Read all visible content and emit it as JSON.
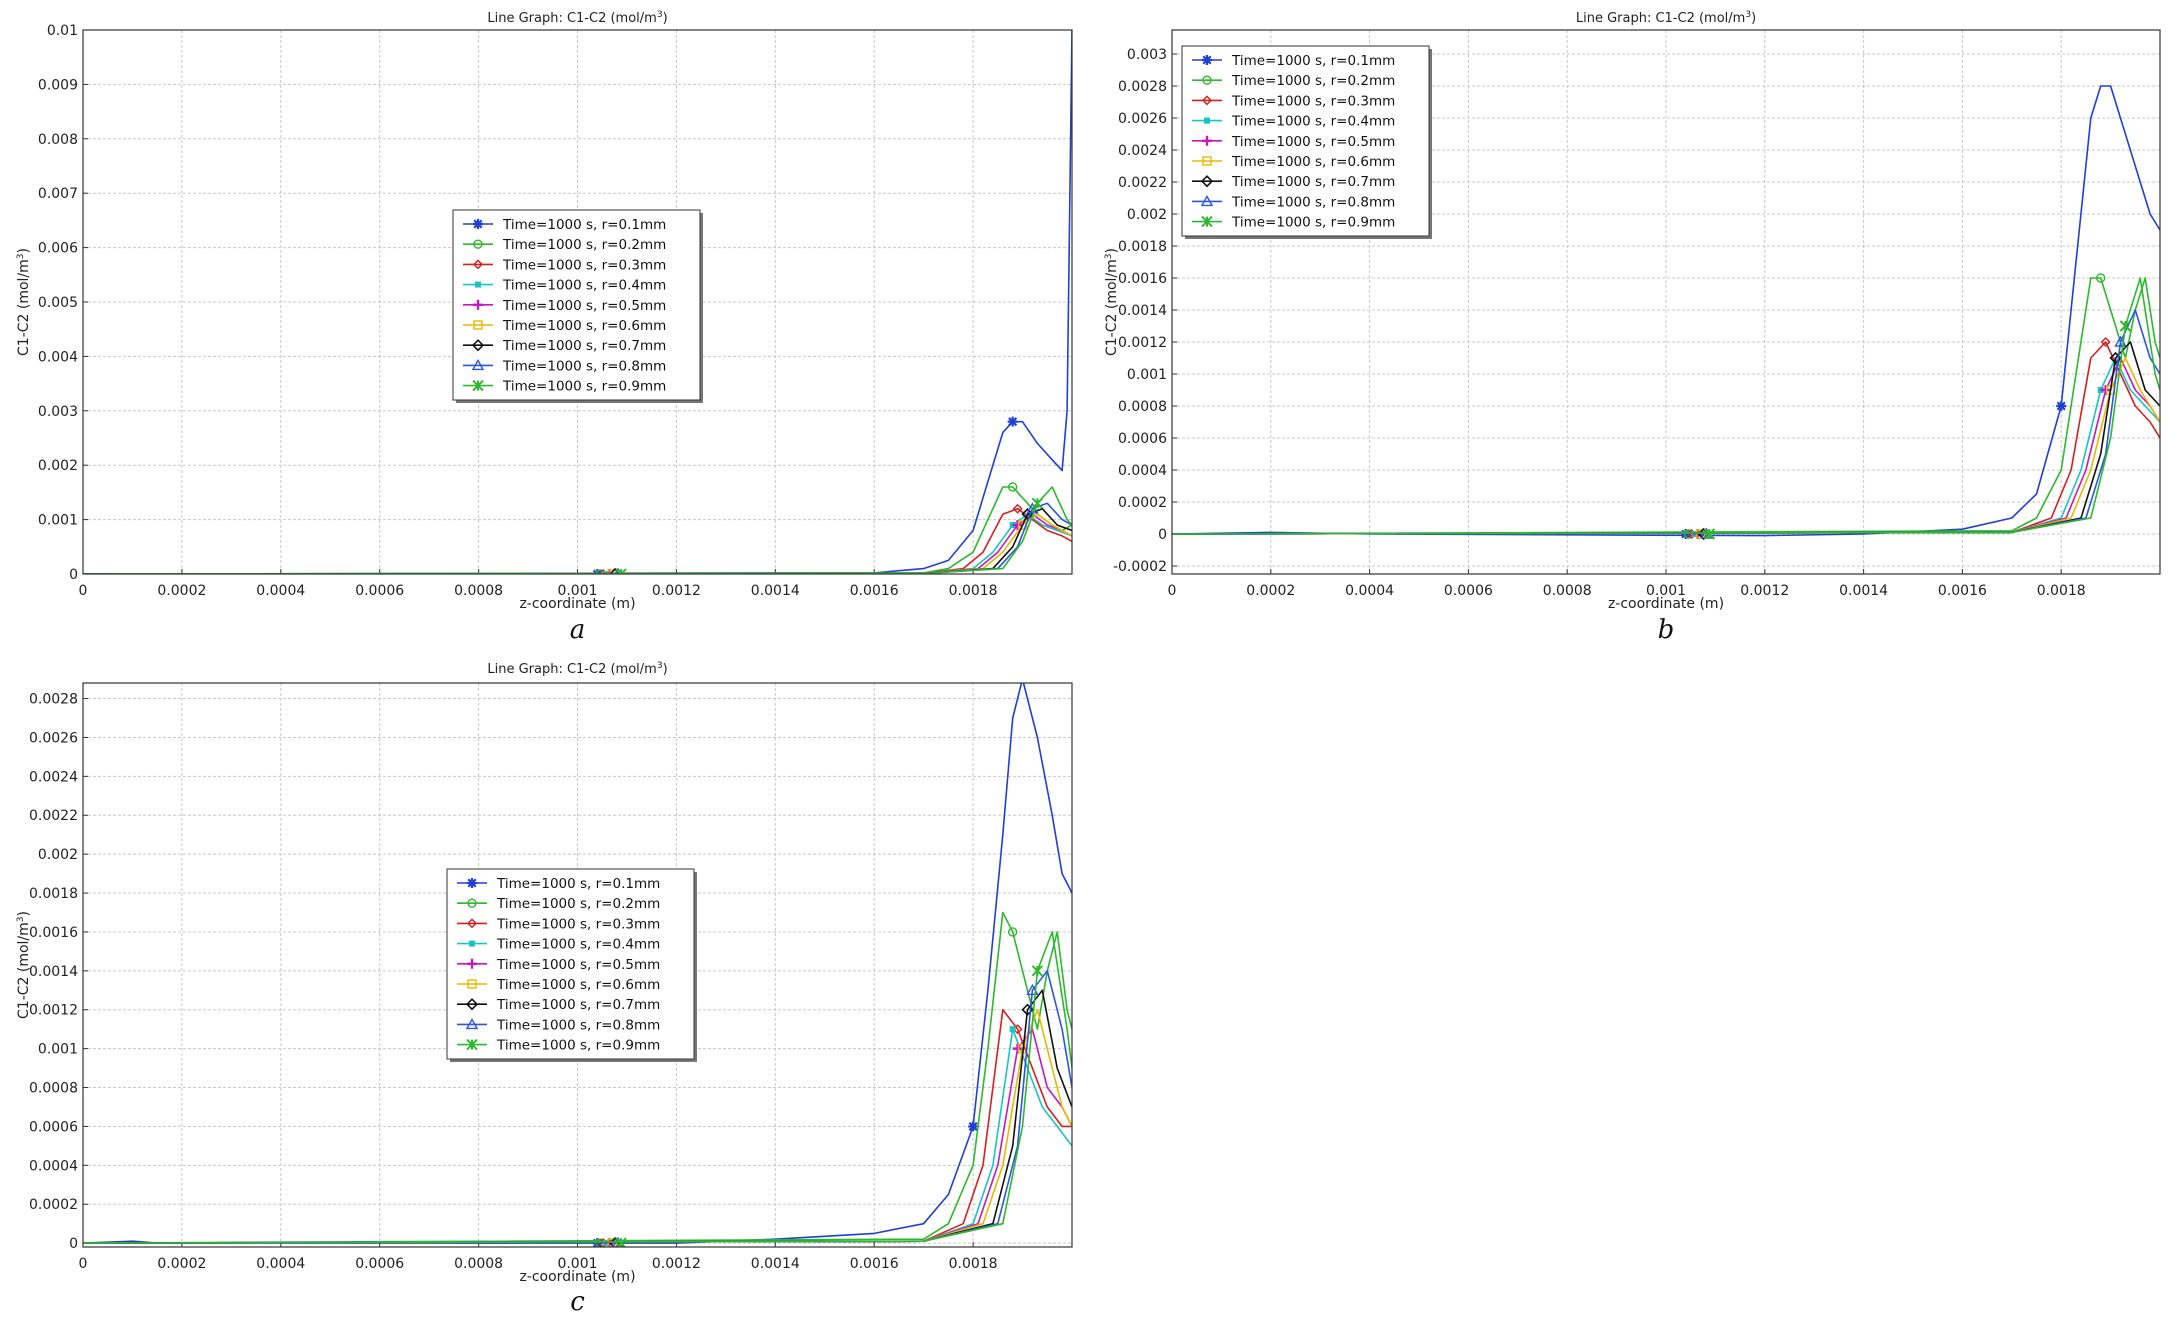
{
  "chart_data": [
    {
      "id": "a",
      "type": "line",
      "title": "Line Graph: C1-C2 (mol/m",
      "title_sup": "3",
      "title_end": ")",
      "xlabel": "z-coordinate (m)",
      "ylabel": "C1-C2 (mol/m",
      "ylabel_sup": "3",
      "ylabel_end": ")",
      "xlim": [
        0,
        0.002
      ],
      "ylim": [
        0,
        0.01
      ],
      "grid": true,
      "legend": "center",
      "caption": "a",
      "xticks": [
        "0",
        "0.0002",
        "0.0004",
        "0.0006",
        "0.0008",
        "0.001",
        "0.0012",
        "0.0014",
        "0.0016",
        "0.0018"
      ],
      "yticks": [
        "0",
        "0.001",
        "0.002",
        "0.003",
        "0.004",
        "0.005",
        "0.006",
        "0.007",
        "0.008",
        "0.009",
        "0.01"
      ],
      "series": [
        {
          "name": "Time=1000 s, r=0.1mm",
          "color": "#1f3fd6",
          "marker": "asterisk",
          "x": [
            0,
            0.0016,
            0.0017,
            0.00175,
            0.0018,
            0.00183,
            0.00186,
            0.00188,
            0.0019,
            0.00193,
            0.00196,
            0.00198,
            0.00199,
            0.002
          ],
          "y": [
            0,
            2e-05,
            0.0001,
            0.00025,
            0.0008,
            0.0017,
            0.0026,
            0.0028,
            0.0028,
            0.0024,
            0.0021,
            0.0019,
            0.003,
            0.01
          ]
        },
        {
          "name": "Time=1000 s, r=0.2mm",
          "color": "#2db82d",
          "marker": "circle",
          "x": [
            0,
            0.0017,
            0.00175,
            0.0018,
            0.00183,
            0.00186,
            0.00188,
            0.0019,
            0.00193,
            0.00196,
            0.00198,
            0.002
          ],
          "y": [
            0,
            2e-05,
            0.0001,
            0.0004,
            0.001,
            0.0016,
            0.0016,
            0.0014,
            0.0011,
            0.0009,
            0.0008,
            0.0009
          ]
        },
        {
          "name": "Time=1000 s, r=0.3mm",
          "color": "#d61f1f",
          "marker": "diamond",
          "x": [
            0,
            0.0017,
            0.00178,
            0.00182,
            0.00186,
            0.00189,
            0.00192,
            0.00195,
            0.00198,
            0.002
          ],
          "y": [
            0,
            1e-05,
            0.0001,
            0.0004,
            0.0011,
            0.0012,
            0.001,
            0.0008,
            0.0007,
            0.0006
          ]
        },
        {
          "name": "Time=1000 s, r=0.4mm",
          "color": "#18c4c4",
          "marker": "square",
          "x": [
            0,
            0.0017,
            0.0018,
            0.00184,
            0.00188,
            0.00191,
            0.00194,
            0.00197,
            0.002
          ],
          "y": [
            0,
            1e-05,
            0.0001,
            0.0004,
            0.0009,
            0.0011,
            0.0009,
            0.0008,
            0.0007
          ]
        },
        {
          "name": "Time=1000 s, r=0.5mm",
          "color": "#c418c4",
          "marker": "plus",
          "x": [
            0,
            0.0017,
            0.00181,
            0.00185,
            0.00189,
            0.00192,
            0.00195,
            0.00198,
            0.002
          ],
          "y": [
            0,
            1e-05,
            0.0001,
            0.0004,
            0.0009,
            0.0011,
            0.0009,
            0.0008,
            0.0007
          ]
        },
        {
          "name": "Time=1000 s, r=0.6mm",
          "color": "#e8b800",
          "marker": "square-open",
          "x": [
            0,
            0.0017,
            0.00182,
            0.00186,
            0.0019,
            0.00193,
            0.00196,
            0.00198,
            0.002
          ],
          "y": [
            0,
            1e-05,
            0.0001,
            0.0004,
            0.0009,
            0.0011,
            0.0009,
            0.0008,
            0.0007
          ]
        },
        {
          "name": "Time=1000 s, r=0.7mm",
          "color": "#111111",
          "marker": "diamond-open",
          "x": [
            0,
            0.0017,
            0.00184,
            0.00188,
            0.00191,
            0.00194,
            0.00197,
            0.002
          ],
          "y": [
            0,
            1e-05,
            0.0001,
            0.0005,
            0.0011,
            0.0012,
            0.0009,
            0.0008
          ]
        },
        {
          "name": "Time=1000 s, r=0.8mm",
          "color": "#2b55e6",
          "marker": "triangle",
          "x": [
            0,
            0.0017,
            0.00185,
            0.00189,
            0.00192,
            0.00195,
            0.00198,
            0.002
          ],
          "y": [
            0,
            1e-05,
            0.0001,
            0.0005,
            0.0012,
            0.0013,
            0.001,
            0.0009
          ]
        },
        {
          "name": "Time=1000 s, r=0.9mm",
          "color": "#2db82d",
          "marker": "star",
          "x": [
            0,
            0.0017,
            0.00186,
            0.0019,
            0.00193,
            0.00196,
            0.00199,
            0.002
          ],
          "y": [
            0,
            1e-05,
            0.0001,
            0.0006,
            0.0013,
            0.0016,
            0.001,
            0.0009
          ]
        }
      ]
    },
    {
      "id": "b",
      "type": "line",
      "title": "Line Graph: C1-C2 (mol/m",
      "title_sup": "3",
      "title_end": ")",
      "xlabel": "z-coordinate (m)",
      "ylabel": "C1-C2 (mol/m",
      "ylabel_sup": "3",
      "ylabel_end": ")",
      "xlim": [
        0,
        0.002
      ],
      "ylim": [
        -0.00025,
        0.00315
      ],
      "grid": true,
      "legend": "top-left",
      "caption": "b",
      "xticks": [
        "0",
        "0.0002",
        "0.0004",
        "0.0006",
        "0.0008",
        "0.001",
        "0.0012",
        "0.0014",
        "0.0016",
        "0.0018"
      ],
      "yticks": [
        "-0.0002",
        "0",
        "0.0002",
        "0.0004",
        "0.0006",
        "0.0008",
        "0.001",
        "0.0012",
        "0.0014",
        "0.0016",
        "0.0018",
        "0.002",
        "0.0022",
        "0.0024",
        "0.0026",
        "0.0028",
        "0.003"
      ],
      "series": [
        {
          "name": "Time=1000 s, r=0.1mm",
          "color": "#1f3fd6",
          "marker": "asterisk",
          "x": [
            0,
            0.0002,
            0.0004,
            0.0012,
            0.0014,
            0.0016,
            0.0017,
            0.00175,
            0.0018,
            0.00183,
            0.00186,
            0.00188,
            0.0019,
            0.00193,
            0.00196,
            0.00198,
            0.002
          ],
          "y": [
            0,
            1e-05,
            0,
            -1e-05,
            0,
            3e-05,
            0.0001,
            0.00025,
            0.0008,
            0.0017,
            0.0026,
            0.0028,
            0.0028,
            0.0025,
            0.0022,
            0.002,
            0.0019
          ]
        },
        {
          "name": "Time=1000 s, r=0.2mm",
          "color": "#2db82d",
          "marker": "circle",
          "x": [
            0,
            0.0017,
            0.00175,
            0.0018,
            0.00183,
            0.00186,
            0.00188,
            0.0019,
            0.00193,
            0.00195,
            0.00197,
            0.00199,
            0.002
          ],
          "y": [
            0,
            2e-05,
            0.0001,
            0.0004,
            0.001,
            0.0016,
            0.0016,
            0.0014,
            0.0011,
            0.0014,
            0.0016,
            0.0012,
            0.0011
          ]
        },
        {
          "name": "Time=1000 s, r=0.3mm",
          "color": "#d61f1f",
          "marker": "diamond",
          "x": [
            0,
            0.0017,
            0.00178,
            0.00182,
            0.00186,
            0.00189,
            0.00192,
            0.00195,
            0.00198,
            0.002
          ],
          "y": [
            0,
            1e-05,
            0.0001,
            0.0004,
            0.0011,
            0.0012,
            0.001,
            0.0008,
            0.0007,
            0.0006
          ]
        },
        {
          "name": "Time=1000 s, r=0.4mm",
          "color": "#18c4c4",
          "marker": "square",
          "x": [
            0,
            0.0017,
            0.0018,
            0.00184,
            0.00188,
            0.00191,
            0.00194,
            0.00197,
            0.002
          ],
          "y": [
            0,
            1e-05,
            0.0001,
            0.0004,
            0.0009,
            0.0011,
            0.0009,
            0.0008,
            0.0007
          ]
        },
        {
          "name": "Time=1000 s, r=0.5mm",
          "color": "#c418c4",
          "marker": "plus",
          "x": [
            0,
            0.0017,
            0.00181,
            0.00185,
            0.00189,
            0.00192,
            0.00195,
            0.00198,
            0.002
          ],
          "y": [
            0,
            1e-05,
            0.0001,
            0.0004,
            0.0009,
            0.0011,
            0.0009,
            0.0008,
            0.0007
          ]
        },
        {
          "name": "Time=1000 s, r=0.6mm",
          "color": "#e8b800",
          "marker": "square-open",
          "x": [
            0,
            0.0017,
            0.00182,
            0.00186,
            0.0019,
            0.00193,
            0.00196,
            0.00198,
            0.002
          ],
          "y": [
            0,
            1e-05,
            0.0001,
            0.0004,
            0.0009,
            0.0011,
            0.0009,
            0.0008,
            0.0007
          ]
        },
        {
          "name": "Time=1000 s, r=0.7mm",
          "color": "#111111",
          "marker": "diamond-open",
          "x": [
            0,
            0.0017,
            0.00184,
            0.00188,
            0.00191,
            0.00194,
            0.00197,
            0.002
          ],
          "y": [
            0,
            1e-05,
            0.0001,
            0.0005,
            0.0011,
            0.0012,
            0.0009,
            0.0008
          ]
        },
        {
          "name": "Time=1000 s, r=0.8mm",
          "color": "#2b55e6",
          "marker": "triangle",
          "x": [
            0,
            0.0017,
            0.00185,
            0.00189,
            0.00192,
            0.00195,
            0.00198,
            0.002
          ],
          "y": [
            0,
            1e-05,
            0.0001,
            0.0005,
            0.0012,
            0.0014,
            0.0011,
            0.001
          ]
        },
        {
          "name": "Time=1000 s, r=0.9mm",
          "color": "#2db82d",
          "marker": "star",
          "x": [
            0,
            0.0017,
            0.00186,
            0.0019,
            0.00193,
            0.00196,
            0.00199,
            0.002
          ],
          "y": [
            0,
            1e-05,
            0.0001,
            0.0006,
            0.0013,
            0.0016,
            0.001,
            0.0009
          ]
        }
      ]
    },
    {
      "id": "c",
      "type": "line",
      "title": "Line Graph: C1-C2 (mol/m",
      "title_sup": "3",
      "title_end": ")",
      "xlabel": "z-coordinate (m)",
      "ylabel": "C1-C2 (mol/m",
      "ylabel_sup": "3",
      "ylabel_end": ")",
      "xlim": [
        0,
        0.002
      ],
      "ylim": [
        -2e-05,
        0.00288
      ],
      "grid": true,
      "legend": "center-left",
      "caption": "c",
      "xticks": [
        "0",
        "0.0002",
        "0.0004",
        "0.0006",
        "0.0008",
        "0.001",
        "0.0012",
        "0.0014",
        "0.0016",
        "0.0018"
      ],
      "yticks": [
        "0",
        "0.0002",
        "0.0004",
        "0.0006",
        "0.0008",
        "0.001",
        "0.0012",
        "0.0014",
        "0.0016",
        "0.0018",
        "0.002",
        "0.0022",
        "0.0024",
        "0.0026",
        "0.0028"
      ],
      "series": [
        {
          "name": "Time=1000 s, r=0.1mm",
          "color": "#1f3fd6",
          "marker": "asterisk",
          "x": [
            0,
            0.0001,
            0.00015,
            0.0012,
            0.0014,
            0.0016,
            0.0017,
            0.00175,
            0.0018,
            0.00183,
            0.00186,
            0.00188,
            0.0019,
            0.00193,
            0.00196,
            0.00198,
            0.002
          ],
          "y": [
            0,
            1e-05,
            0,
            0,
            2e-05,
            5e-05,
            0.0001,
            0.00025,
            0.0006,
            0.0013,
            0.0021,
            0.0027,
            0.0029,
            0.0026,
            0.0022,
            0.0019,
            0.0018
          ]
        },
        {
          "name": "Time=1000 s, r=0.2mm",
          "color": "#2db82d",
          "marker": "circle",
          "x": [
            0,
            0.0017,
            0.00175,
            0.0018,
            0.00183,
            0.00186,
            0.00188,
            0.0019,
            0.00193,
            0.00195,
            0.00197,
            0.00199,
            0.002
          ],
          "y": [
            0,
            2e-05,
            0.0001,
            0.0004,
            0.001,
            0.0017,
            0.0016,
            0.0014,
            0.0011,
            0.0014,
            0.0016,
            0.0012,
            0.0011
          ]
        },
        {
          "name": "Time=1000 s, r=0.3mm",
          "color": "#d61f1f",
          "marker": "diamond",
          "x": [
            0,
            0.0017,
            0.00178,
            0.00182,
            0.00186,
            0.00189,
            0.00192,
            0.00195,
            0.00198,
            0.002
          ],
          "y": [
            0,
            1e-05,
            0.0001,
            0.0004,
            0.0012,
            0.0011,
            0.0009,
            0.0007,
            0.0006,
            0.0006
          ]
        },
        {
          "name": "Time=1000 s, r=0.4mm",
          "color": "#18c4c4",
          "marker": "square",
          "x": [
            0,
            0.0017,
            0.0018,
            0.00184,
            0.00188,
            0.00191,
            0.00194,
            0.00197,
            0.002
          ],
          "y": [
            0,
            1e-05,
            0.0001,
            0.0004,
            0.0011,
            0.0009,
            0.0007,
            0.0006,
            0.0005
          ]
        },
        {
          "name": "Time=1000 s, r=0.5mm",
          "color": "#c418c4",
          "marker": "plus",
          "x": [
            0,
            0.0017,
            0.00181,
            0.00185,
            0.00189,
            0.00192,
            0.00195,
            0.00198,
            0.002
          ],
          "y": [
            0,
            1e-05,
            0.0001,
            0.0004,
            0.001,
            0.0011,
            0.0008,
            0.0007,
            0.0006
          ]
        },
        {
          "name": "Time=1000 s, r=0.6mm",
          "color": "#e8b800",
          "marker": "square-open",
          "x": [
            0,
            0.0017,
            0.00182,
            0.00186,
            0.0019,
            0.00193,
            0.00196,
            0.00198,
            0.002
          ],
          "y": [
            0,
            1e-05,
            0.0001,
            0.0004,
            0.001,
            0.0012,
            0.0009,
            0.0007,
            0.0006
          ]
        },
        {
          "name": "Time=1000 s, r=0.7mm",
          "color": "#111111",
          "marker": "diamond-open",
          "x": [
            0,
            0.0017,
            0.00184,
            0.00188,
            0.00191,
            0.00194,
            0.00197,
            0.002
          ],
          "y": [
            0,
            1e-05,
            0.0001,
            0.0005,
            0.0012,
            0.0013,
            0.0009,
            0.0007
          ]
        },
        {
          "name": "Time=1000 s, r=0.8mm",
          "color": "#2b55e6",
          "marker": "triangle",
          "x": [
            0,
            0.0017,
            0.00185,
            0.00189,
            0.00192,
            0.00195,
            0.00198,
            0.002
          ],
          "y": [
            0,
            1e-05,
            0.0001,
            0.0005,
            0.0013,
            0.0014,
            0.0011,
            0.0008
          ]
        },
        {
          "name": "Time=1000 s, r=0.9mm",
          "color": "#2db82d",
          "marker": "star",
          "x": [
            0,
            0.0017,
            0.00186,
            0.0019,
            0.00193,
            0.00196,
            0.00199,
            0.002
          ],
          "y": [
            0,
            1e-05,
            0.0001,
            0.0006,
            0.0014,
            0.0016,
            0.0011,
            0.0009
          ]
        }
      ]
    }
  ]
}
